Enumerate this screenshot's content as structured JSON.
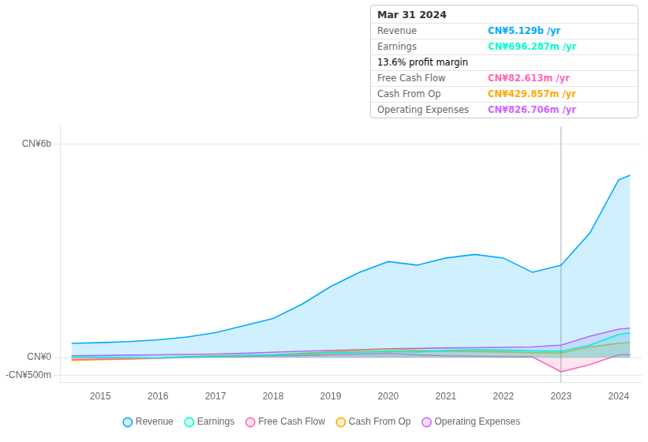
{
  "chart_data": {
    "type": "area",
    "x": [
      2014.5,
      2015.0,
      2015.5,
      2016.0,
      2016.5,
      2017.0,
      2017.5,
      2018.0,
      2018.5,
      2019.0,
      2019.5,
      2020.0,
      2020.5,
      2021.0,
      2021.5,
      2022.0,
      2022.5,
      2023.0,
      2023.5,
      2024.0,
      2024.2
    ],
    "series": [
      {
        "name": "Revenue",
        "color": "#00aaff",
        "values": [
          400,
          420,
          450,
          500,
          580,
          700,
          900,
          1100,
          1500,
          2000,
          2400,
          2700,
          2600,
          2800,
          2900,
          2800,
          2400,
          2600,
          3500,
          5000,
          5129
        ]
      },
      {
        "name": "Earnings",
        "color": "#00ffcc",
        "values": [
          20,
          10,
          0,
          -10,
          20,
          30,
          50,
          80,
          100,
          130,
          150,
          180,
          160,
          200,
          220,
          210,
          190,
          180,
          350,
          650,
          696
        ]
      },
      {
        "name": "Free Cash Flow",
        "color": "#ff69b4",
        "values": [
          -50,
          -40,
          -30,
          -20,
          10,
          20,
          30,
          50,
          60,
          80,
          100,
          130,
          80,
          50,
          40,
          30,
          20,
          -400,
          -200,
          80,
          83
        ]
      },
      {
        "name": "Cash From Op",
        "color": "#ffaa00",
        "values": [
          -80,
          -60,
          -40,
          -20,
          30,
          50,
          60,
          80,
          120,
          160,
          200,
          240,
          200,
          180,
          170,
          160,
          140,
          130,
          300,
          400,
          430
        ]
      },
      {
        "name": "Operating Expenses",
        "color": "#cc66ff",
        "values": [
          50,
          60,
          70,
          80,
          90,
          100,
          120,
          150,
          180,
          200,
          220,
          250,
          260,
          270,
          280,
          290,
          300,
          350,
          600,
          800,
          827
        ]
      }
    ],
    "xlim": [
      2014.3,
      2024.4
    ],
    "xticks": [
      2015,
      2016,
      2017,
      2018,
      2019,
      2020,
      2021,
      2022,
      2023,
      2024
    ],
    "ylim": [
      -700,
      6500
    ],
    "yticks": [
      {
        "value": -500,
        "label": "-CN¥500m"
      },
      {
        "value": 0,
        "label": "CN¥0"
      },
      {
        "value": 6000,
        "label": "CN¥6b"
      }
    ],
    "vlines": [
      2023.0
    ],
    "grid": true,
    "legend": "bottom",
    "annotations": [
      {
        "text": "Mar 31 2024"
      },
      {
        "label": "Revenue",
        "text": "CN¥5.129b /yr",
        "color": "#00aaff"
      },
      {
        "label": "Earnings",
        "text": "CN¥696.287m /yr",
        "color": "#00ffcc"
      },
      {
        "text": "13.6% profit margin"
      },
      {
        "label": "Free Cash Flow",
        "text": "CN¥82.613m /yr",
        "color": "#ff69b4"
      },
      {
        "label": "Cash From Op",
        "text": "CN¥429.857m /yr",
        "color": "#ffaa00"
      },
      {
        "label": "Operating Expenses",
        "text": "CN¥826.706m /yr",
        "color": "#cc66ff"
      }
    ]
  }
}
